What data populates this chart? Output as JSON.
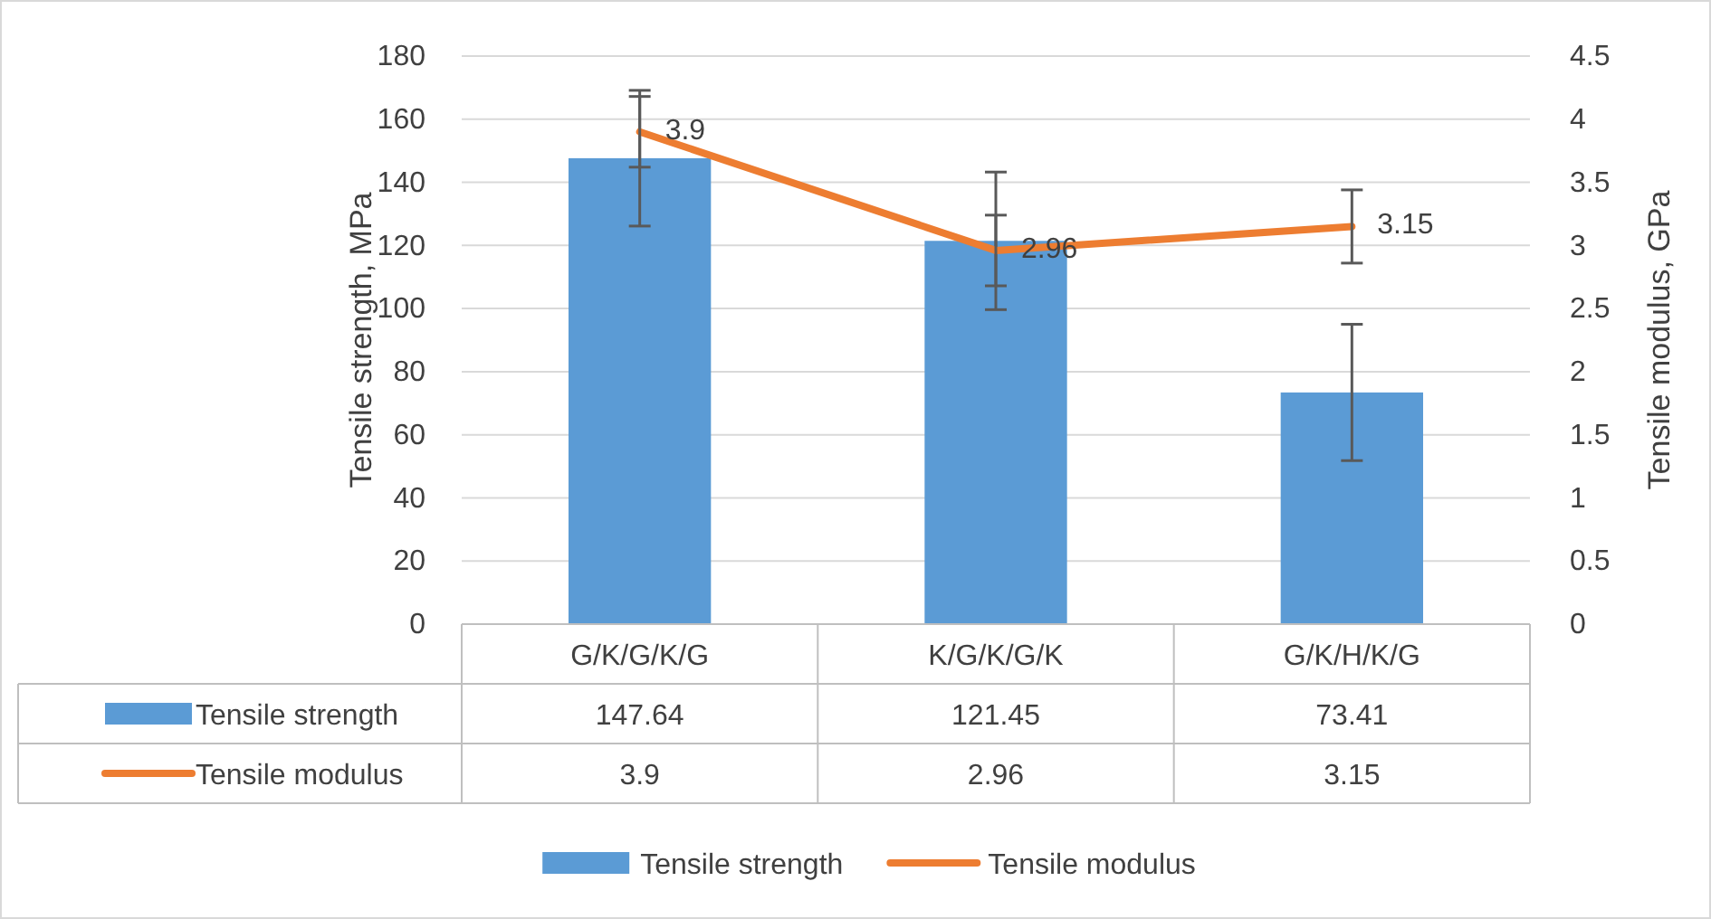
{
  "chart_data": {
    "type": "bar",
    "categories": [
      "G/K/G/K/G",
      "K/G/K/G/K",
      "G/K/H/K/G"
    ],
    "ylabel": "Tensile strength, MPa",
    "y2label": "Tensile modulus, GPa",
    "ylim": [
      0,
      180
    ],
    "yticks": [
      0,
      20,
      40,
      60,
      80,
      100,
      120,
      140,
      160,
      180
    ],
    "y2lim": [
      0,
      4.5
    ],
    "y2ticks": [
      0,
      {
        "value": 0.5,
        "label": "0.5"
      },
      1,
      {
        "value": 1.5,
        "label": "1.5"
      },
      2,
      {
        "value": 2.5,
        "label": "2.5"
      },
      3,
      {
        "value": 3.5,
        "label": "3.5"
      },
      4,
      {
        "value": 4.5,
        "label": "4.5"
      }
    ],
    "grid": "y",
    "annotations": [
      "3.9",
      "2.96",
      "3.15"
    ],
    "legend": "bottom",
    "data_labels": true,
    "series": [
      {
        "name": "Tensile strength",
        "color": "#5b9bd5",
        "values": [
          147.64,
          121.45,
          73.41
        ],
        "errors": [
          21.5,
          21.8,
          21.6
        ]
      },
      {
        "name": "Tensile modulus",
        "type": "line",
        "axis": "y2",
        "color": "#ed7d31",
        "values": [
          3.9,
          2.96,
          3.15
        ],
        "errors": [
          0.28,
          0.28,
          0.29
        ]
      }
    ]
  }
}
